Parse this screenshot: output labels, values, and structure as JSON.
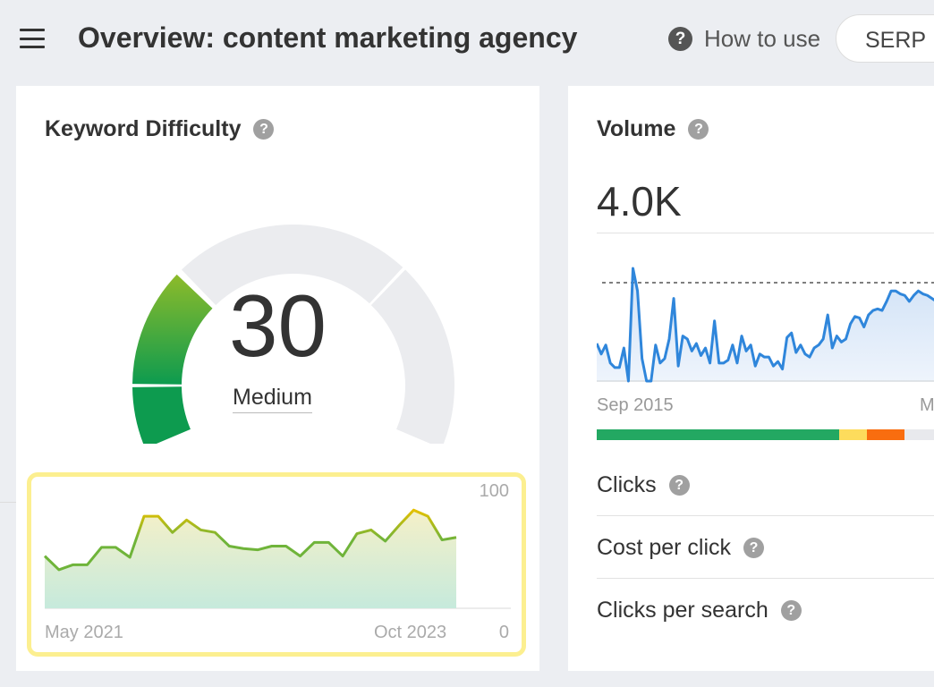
{
  "header": {
    "title": "Overview: content marketing agency",
    "how_to_use": "How to use",
    "serp_button": "SERP",
    "help_glyph": "?"
  },
  "kd_card": {
    "title": "Keyword Difficulty",
    "value": "30",
    "label": "Medium",
    "gauge_percent": 30,
    "colors": {
      "green_top": "#8dbb2a",
      "green_bottom": "#0d9b4f",
      "track": "#ebecef",
      "border": "#fcef90"
    }
  },
  "kd_history": {
    "type": "area",
    "x_start": "May 2021",
    "x_end": "Oct 2023",
    "y_max_label": "100",
    "y_min_label": "0",
    "ylim": [
      0,
      100
    ],
    "values": [
      42,
      31,
      35,
      35,
      49,
      49,
      41,
      74,
      74,
      61,
      71,
      63,
      61,
      50,
      48,
      47,
      50,
      50,
      42,
      53,
      53,
      42,
      60,
      63,
      54,
      67,
      79,
      74,
      55,
      57
    ]
  },
  "volume_card": {
    "title": "Volume",
    "value": "4.0K",
    "x_start": "Sep 2015",
    "x_end_partial": "M",
    "chart": {
      "type": "area",
      "color": "#2f86db",
      "values": [
        25,
        18,
        24,
        12,
        9,
        9,
        22,
        0,
        75,
        60,
        15,
        0,
        0,
        24,
        12,
        15,
        28,
        55,
        10,
        30,
        28,
        20,
        25,
        17,
        22,
        12,
        40,
        12,
        12,
        14,
        24,
        12,
        30,
        20,
        24,
        10,
        18,
        16,
        16,
        10,
        13,
        8,
        29,
        32,
        19,
        24,
        18,
        16,
        22,
        24,
        28,
        44,
        22,
        30,
        26,
        28,
        38,
        43,
        42,
        36,
        44,
        47,
        48,
        47,
        53,
        60,
        60,
        58,
        57,
        53,
        57,
        60,
        58,
        57,
        55,
        53,
        60,
        57,
        47,
        50
      ]
    },
    "distribution": [
      {
        "color": "#23a862",
        "share": 64.5
      },
      {
        "color": "#fddc5c",
        "share": 7.3
      },
      {
        "color": "#f96d0f",
        "share": 10
      },
      {
        "color": "#e8e9ed",
        "share": 18.2
      }
    ],
    "rows": [
      {
        "label": "Clicks"
      },
      {
        "label": "Cost per click"
      },
      {
        "label": "Clicks per search"
      }
    ]
  }
}
